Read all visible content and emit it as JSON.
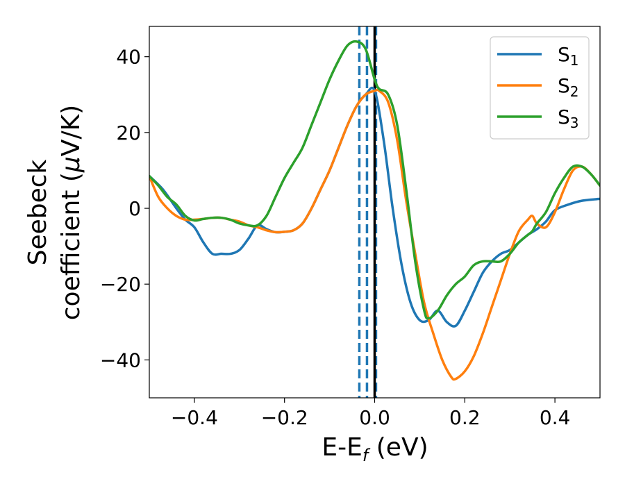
{
  "chart_data": {
    "type": "line",
    "title": "",
    "xlabel": {
      "main": "E-E",
      "sub": "f",
      "unit": " (eV)"
    },
    "ylabel": {
      "line1": "Seebeck",
      "line2_text": "coefficient  (",
      "line2_mu": "μ",
      "line2_unit": "V/K)"
    },
    "xlim": [
      -0.5,
      0.5
    ],
    "ylim": [
      -50,
      48
    ],
    "x_ticks": [
      -0.4,
      -0.2,
      0.0,
      0.2,
      0.4
    ],
    "x_tick_labels": [
      "−0.4",
      "−0.2",
      "0.0",
      "0.2",
      "0.4"
    ],
    "y_ticks": [
      -40,
      -20,
      0,
      20,
      40
    ],
    "y_tick_labels": [
      "−40",
      "−20",
      "0",
      "20",
      "40"
    ],
    "grid": false,
    "legend_position": "top-right",
    "vertical_lines": [
      {
        "x": -0.034,
        "style": "dashed",
        "color": "#1f77b4"
      },
      {
        "x": -0.017,
        "style": "dashed",
        "color": "#1f77b4"
      },
      {
        "x": 0.003,
        "style": "dashed",
        "color": "#1f77b4"
      },
      {
        "x": 0.0,
        "style": "solid",
        "color": "#000000"
      }
    ],
    "series": [
      {
        "name": "S",
        "subscript": "1",
        "color": "#1f77b4",
        "points": [
          [
            -0.5,
            8.5
          ],
          [
            -0.47,
            5
          ],
          [
            -0.44,
            0
          ],
          [
            -0.42,
            -3
          ],
          [
            -0.4,
            -5
          ],
          [
            -0.38,
            -9
          ],
          [
            -0.36,
            -12
          ],
          [
            -0.34,
            -12
          ],
          [
            -0.32,
            -12
          ],
          [
            -0.3,
            -11
          ],
          [
            -0.28,
            -8
          ],
          [
            -0.26,
            -4.5
          ],
          [
            -0.24,
            -5.5
          ],
          [
            -0.22,
            -6.3
          ],
          [
            -0.2,
            -6.2
          ],
          [
            -0.18,
            -5.8
          ],
          [
            -0.16,
            -4
          ],
          [
            -0.14,
            0
          ],
          [
            -0.12,
            5
          ],
          [
            -0.1,
            10
          ],
          [
            -0.08,
            16
          ],
          [
            -0.06,
            22
          ],
          [
            -0.04,
            27
          ],
          [
            -0.02,
            30
          ],
          [
            0.0,
            31
          ],
          [
            0.02,
            18
          ],
          [
            0.04,
            0
          ],
          [
            0.06,
            -15
          ],
          [
            0.08,
            -25
          ],
          [
            0.1,
            -29.5
          ],
          [
            0.12,
            -29.5
          ],
          [
            0.14,
            -27
          ],
          [
            0.16,
            -30
          ],
          [
            0.18,
            -31
          ],
          [
            0.2,
            -27
          ],
          [
            0.22,
            -22
          ],
          [
            0.24,
            -17
          ],
          [
            0.26,
            -14
          ],
          [
            0.28,
            -12
          ],
          [
            0.3,
            -11
          ],
          [
            0.32,
            -9
          ],
          [
            0.34,
            -7
          ],
          [
            0.36,
            -5.5
          ],
          [
            0.38,
            -3.5
          ],
          [
            0.4,
            -0.5
          ],
          [
            0.43,
            1
          ],
          [
            0.46,
            2
          ],
          [
            0.5,
            2.5
          ]
        ]
      },
      {
        "name": "S",
        "subscript": "2",
        "color": "#ff7f0e",
        "points": [
          [
            -0.5,
            8.5
          ],
          [
            -0.48,
            3
          ],
          [
            -0.46,
            0
          ],
          [
            -0.44,
            -2
          ],
          [
            -0.42,
            -3
          ],
          [
            -0.4,
            -3
          ],
          [
            -0.38,
            -2.8
          ],
          [
            -0.36,
            -2.5
          ],
          [
            -0.34,
            -2.5
          ],
          [
            -0.32,
            -3
          ],
          [
            -0.3,
            -3.5
          ],
          [
            -0.28,
            -4.5
          ],
          [
            -0.26,
            -5
          ],
          [
            -0.24,
            -5.8
          ],
          [
            -0.22,
            -6.3
          ],
          [
            -0.2,
            -6.2
          ],
          [
            -0.18,
            -5.8
          ],
          [
            -0.16,
            -4
          ],
          [
            -0.14,
            0
          ],
          [
            -0.12,
            5
          ],
          [
            -0.1,
            10
          ],
          [
            -0.08,
            16
          ],
          [
            -0.06,
            22
          ],
          [
            -0.04,
            27
          ],
          [
            -0.02,
            30
          ],
          [
            0.0,
            31
          ],
          [
            0.01,
            31
          ],
          [
            0.03,
            28
          ],
          [
            0.05,
            18
          ],
          [
            0.07,
            2
          ],
          [
            0.09,
            -12
          ],
          [
            0.11,
            -25
          ],
          [
            0.13,
            -33
          ],
          [
            0.15,
            -40
          ],
          [
            0.17,
            -44.5
          ],
          [
            0.18,
            -45
          ],
          [
            0.2,
            -43
          ],
          [
            0.22,
            -39
          ],
          [
            0.24,
            -33
          ],
          [
            0.26,
            -26
          ],
          [
            0.28,
            -19
          ],
          [
            0.3,
            -12
          ],
          [
            0.32,
            -6
          ],
          [
            0.34,
            -3
          ],
          [
            0.35,
            -2
          ],
          [
            0.36,
            -4
          ],
          [
            0.38,
            -5
          ],
          [
            0.4,
            -1
          ],
          [
            0.42,
            5
          ],
          [
            0.44,
            10
          ],
          [
            0.46,
            11
          ],
          [
            0.48,
            9
          ],
          [
            0.5,
            6
          ]
        ]
      },
      {
        "name": "S",
        "subscript": "3",
        "color": "#2ca02c",
        "points": [
          [
            -0.5,
            8.5
          ],
          [
            -0.48,
            6
          ],
          [
            -0.46,
            3
          ],
          [
            -0.44,
            1
          ],
          [
            -0.42,
            -2
          ],
          [
            -0.4,
            -3.2
          ],
          [
            -0.38,
            -2.8
          ],
          [
            -0.36,
            -2.5
          ],
          [
            -0.34,
            -2.5
          ],
          [
            -0.32,
            -3
          ],
          [
            -0.3,
            -4
          ],
          [
            -0.28,
            -4.5
          ],
          [
            -0.26,
            -4.5
          ],
          [
            -0.24,
            -2
          ],
          [
            -0.22,
            3
          ],
          [
            -0.2,
            8
          ],
          [
            -0.18,
            12
          ],
          [
            -0.16,
            16
          ],
          [
            -0.14,
            22
          ],
          [
            -0.12,
            28
          ],
          [
            -0.1,
            34
          ],
          [
            -0.08,
            39
          ],
          [
            -0.06,
            43
          ],
          [
            -0.04,
            44
          ],
          [
            -0.02,
            42
          ],
          [
            0.0,
            34
          ],
          [
            0.01,
            31.5
          ],
          [
            0.03,
            30
          ],
          [
            0.05,
            22
          ],
          [
            0.07,
            5
          ],
          [
            0.09,
            -14
          ],
          [
            0.11,
            -27
          ],
          [
            0.12,
            -29
          ],
          [
            0.14,
            -27
          ],
          [
            0.16,
            -23
          ],
          [
            0.18,
            -20
          ],
          [
            0.2,
            -18
          ],
          [
            0.22,
            -15
          ],
          [
            0.24,
            -14
          ],
          [
            0.26,
            -14
          ],
          [
            0.28,
            -14
          ],
          [
            0.3,
            -12
          ],
          [
            0.32,
            -9
          ],
          [
            0.34,
            -7
          ],
          [
            0.35,
            -6
          ],
          [
            0.36,
            -4
          ],
          [
            0.38,
            -1
          ],
          [
            0.4,
            4
          ],
          [
            0.42,
            8
          ],
          [
            0.44,
            11
          ],
          [
            0.46,
            11
          ],
          [
            0.48,
            9
          ],
          [
            0.5,
            6
          ]
        ]
      }
    ]
  }
}
